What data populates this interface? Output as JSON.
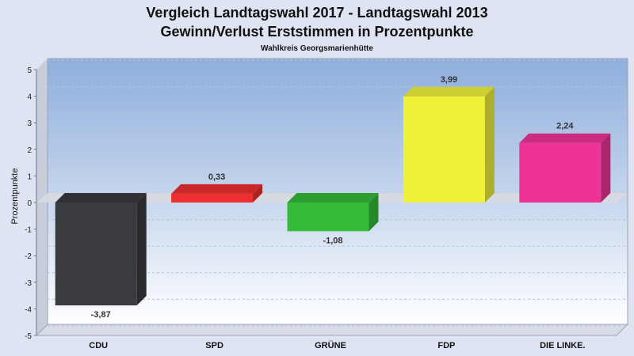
{
  "chart_data": {
    "type": "bar",
    "title": "Vergleich Landtagswahl 2017 - Landtagswahl 2013",
    "subtitle": "Gewinn/Verlust Erststimmen in Prozentpunkte",
    "subsubtitle": "Wahlkreis Georgsmarienhütte",
    "xlabel": "",
    "ylabel": "Prozentpunkte",
    "categories": [
      "CDU",
      "SPD",
      "GRÜNE",
      "FDP",
      "DIE LINKE."
    ],
    "values": [
      -3.87,
      0.33,
      -1.08,
      3.99,
      2.24
    ],
    "value_labels": [
      "-3,87",
      "0,33",
      "-1,08",
      "3,99",
      "2,24"
    ],
    "colors": [
      "#3a3b3f",
      "#ee2f2f",
      "#35bb3a",
      "#f0f23a",
      "#ee3296"
    ],
    "ylim": [
      -5,
      5
    ],
    "yticks": [
      5,
      4,
      3,
      2,
      1,
      0,
      -1,
      -2,
      -3,
      -4,
      -5
    ],
    "grid": true,
    "legend": "none"
  }
}
